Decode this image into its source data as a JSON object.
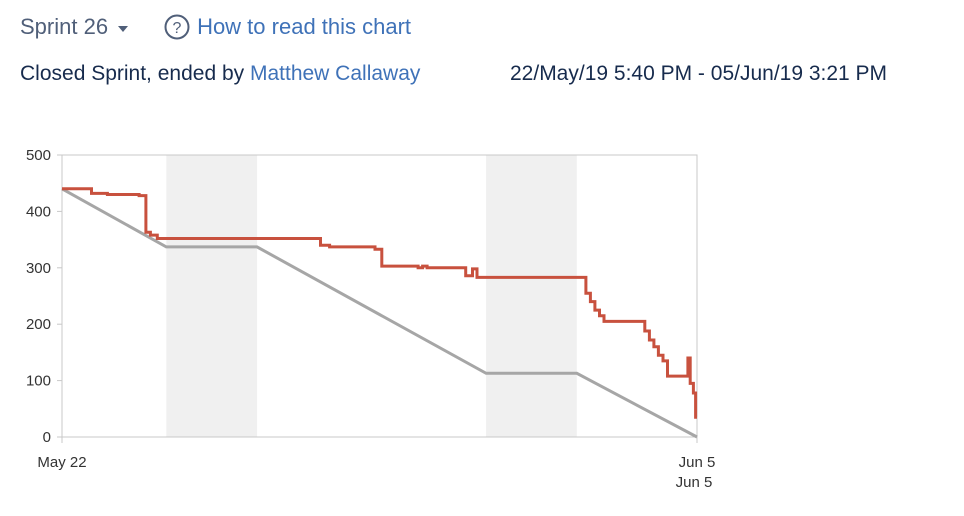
{
  "header": {
    "sprint_label": "Sprint 26",
    "help_label": "How to read this chart"
  },
  "meta": {
    "status_prefix": "Closed Sprint, ended by",
    "owner_name": "Matthew Callaway",
    "date_range": "22/May/19 5:40 PM - 05/Jun/19 3:21 PM"
  },
  "colors": {
    "link": "#3f72b8",
    "remaining_line": "#c8513e",
    "guideline": "#a6a6a6",
    "non_working_band": "#f0f0f0",
    "axis": "#c8c8c8"
  },
  "chart_data": {
    "type": "line",
    "title": "",
    "xlabel": "",
    "ylabel": "",
    "x_range": [
      0,
      14
    ],
    "ylim": [
      0,
      500
    ],
    "y_ticks": [
      0,
      100,
      200,
      300,
      400,
      500
    ],
    "x_tick_labels": [
      {
        "x": 0,
        "label": "May 22"
      },
      {
        "x": 14,
        "label": "Jun 5"
      }
    ],
    "x_extra_label": {
      "x": 14,
      "label": "Jun 5"
    },
    "non_working_bands": [
      {
        "from": 2.3,
        "to": 4.3
      },
      {
        "from": 9.35,
        "to": 11.35
      }
    ],
    "grid": false,
    "legend": "none",
    "series": [
      {
        "role": "guideline",
        "points": [
          [
            0,
            440
          ],
          [
            2.3,
            337
          ],
          [
            4.3,
            337
          ],
          [
            9.35,
            113
          ],
          [
            11.35,
            113
          ],
          [
            14,
            0
          ]
        ]
      },
      {
        "role": "remaining",
        "points": [
          [
            0,
            440
          ],
          [
            0.65,
            440
          ],
          [
            0.65,
            432
          ],
          [
            1.0,
            432
          ],
          [
            1.0,
            430
          ],
          [
            1.7,
            430
          ],
          [
            1.7,
            428
          ],
          [
            1.85,
            428
          ],
          [
            1.85,
            363
          ],
          [
            1.95,
            363
          ],
          [
            1.95,
            358
          ],
          [
            2.1,
            358
          ],
          [
            2.1,
            352
          ],
          [
            5.7,
            352
          ],
          [
            5.7,
            340
          ],
          [
            5.9,
            340
          ],
          [
            5.9,
            337
          ],
          [
            6.9,
            337
          ],
          [
            6.9,
            333
          ],
          [
            7.05,
            333
          ],
          [
            7.05,
            303
          ],
          [
            7.85,
            303
          ],
          [
            7.85,
            300
          ],
          [
            7.95,
            300
          ],
          [
            7.95,
            303
          ],
          [
            8.05,
            303
          ],
          [
            8.05,
            300
          ],
          [
            8.9,
            300
          ],
          [
            8.9,
            286
          ],
          [
            9.05,
            286
          ],
          [
            9.05,
            298
          ],
          [
            9.15,
            298
          ],
          [
            9.15,
            283
          ],
          [
            11.55,
            283
          ],
          [
            11.55,
            255
          ],
          [
            11.65,
            255
          ],
          [
            11.65,
            240
          ],
          [
            11.75,
            240
          ],
          [
            11.75,
            225
          ],
          [
            11.85,
            225
          ],
          [
            11.85,
            215
          ],
          [
            11.95,
            215
          ],
          [
            11.95,
            205
          ],
          [
            12.85,
            205
          ],
          [
            12.85,
            188
          ],
          [
            12.95,
            188
          ],
          [
            12.95,
            172
          ],
          [
            13.05,
            172
          ],
          [
            13.05,
            160
          ],
          [
            13.15,
            160
          ],
          [
            13.15,
            145
          ],
          [
            13.25,
            145
          ],
          [
            13.25,
            135
          ],
          [
            13.35,
            135
          ],
          [
            13.35,
            108
          ],
          [
            13.8,
            108
          ],
          [
            13.8,
            140
          ],
          [
            13.85,
            140
          ],
          [
            13.85,
            95
          ],
          [
            13.92,
            95
          ],
          [
            13.92,
            78
          ],
          [
            13.97,
            78
          ],
          [
            13.97,
            35
          ],
          [
            14,
            35
          ]
        ]
      }
    ]
  }
}
